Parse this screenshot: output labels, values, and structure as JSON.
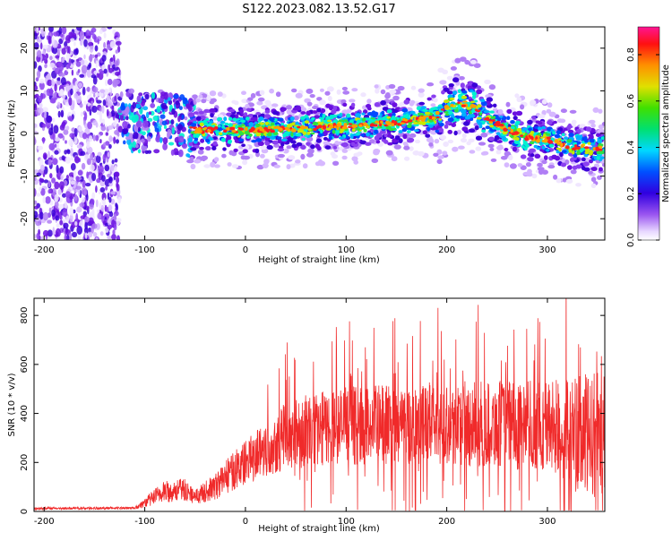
{
  "title": "S122.2023.082.13.52.G17",
  "chart_data": [
    {
      "type": "heatmap",
      "xlabel": "Height of straight line (km)",
      "ylabel": "Frequency (Hz)",
      "xlim": [
        -210,
        357
      ],
      "ylim": [
        -25,
        25
      ],
      "xticks": [
        -200,
        -100,
        0,
        100,
        200,
        300
      ],
      "yticks": [
        -20,
        -10,
        0,
        10,
        20
      ],
      "colorbar": {
        "label": "Normalized spectral amplitude",
        "range": [
          0,
          0.92
        ],
        "ticks": [
          0.0,
          0.2,
          0.4,
          0.6,
          0.8
        ]
      },
      "ridge": {
        "x": [
          -120,
          -100,
          -80,
          -60,
          -50,
          0,
          50,
          100,
          150,
          190,
          200,
          215,
          225,
          240,
          260,
          280,
          300,
          320,
          340,
          357
        ],
        "y": [
          3.5,
          2.5,
          3.0,
          1.5,
          0.8,
          0.8,
          1.2,
          1.8,
          2.5,
          4.0,
          6.0,
          7.0,
          6.5,
          3.5,
          1.0,
          -1.0,
          -1.5,
          -3.0,
          -3.5,
          -3.5
        ]
      },
      "noise_region_x": [
        -210,
        -125
      ]
    },
    {
      "type": "line",
      "xlabel": "Height of straight line (km)",
      "ylabel": "SNR (10 * v/v)",
      "xlim": [
        -210,
        357
      ],
      "ylim": [
        0,
        870
      ],
      "xticks": [
        -200,
        -100,
        0,
        100,
        200,
        300
      ],
      "yticks": [
        0,
        200,
        400,
        600,
        800
      ],
      "color": "#f02a2a",
      "envelope": {
        "x": [
          -210,
          -110,
          -100,
          -90,
          -80,
          -60,
          -50,
          -30,
          -20,
          0,
          20,
          40,
          60,
          100,
          200,
          300,
          320,
          340,
          357
        ],
        "mean": [
          12,
          14,
          35,
          60,
          80,
          90,
          60,
          100,
          140,
          200,
          260,
          310,
          330,
          350,
          360,
          350,
          330,
          300,
          330
        ],
        "spread": [
          5,
          5,
          20,
          35,
          45,
          45,
          30,
          55,
          70,
          90,
          120,
          140,
          150,
          160,
          170,
          190,
          230,
          260,
          250
        ]
      }
    }
  ]
}
